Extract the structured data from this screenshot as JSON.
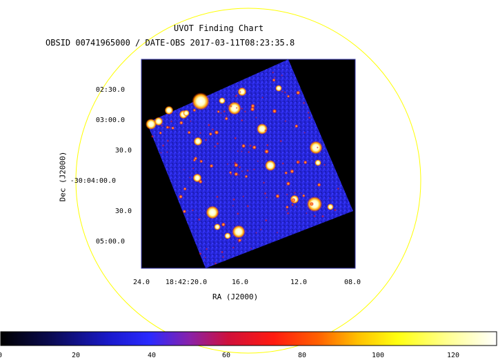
{
  "chart": {
    "title": "UVOT Finding Chart",
    "subtitle": "OBSID 00741965000 / DATE-OBS 2017-03-11T08:23:35.8",
    "xlabel": "RA (J2000)",
    "ylabel": "Dec (J2000)",
    "x_ticks": [
      "24.0",
      "18:42:20.0",
      "16.0",
      "12.0",
      "08.0"
    ],
    "y_ticks": [
      "02:30.0",
      "03:00.0",
      "30.0",
      "-30:04:00.0",
      "30.0",
      "05:00.0"
    ],
    "colorbar_ticks": [
      "0",
      "20",
      "40",
      "60",
      "80",
      "100",
      "120"
    ],
    "colorbar_range": [
      0,
      130
    ],
    "colors": {
      "circle": "#ffff00",
      "frame": "#3333aa",
      "background": "#000000",
      "field": "#2a2ad6"
    }
  },
  "chart_data": {
    "type": "other",
    "title": "UVOT Finding Chart",
    "subtitle": "OBSID 00741965000 / DATE-OBS 2017-03-11T08:23:35.8",
    "xlabel": "RA (J2000)",
    "ylabel": "Dec (J2000)",
    "x_tick_labels": [
      "24.0",
      "18:42:20.0",
      "16.0",
      "12.0",
      "08.0"
    ],
    "y_tick_labels": [
      "02:30.0",
      "03:00.0",
      "30.0",
      "-30:04:00.0",
      "30.0",
      "05:00.0"
    ],
    "colorbar": {
      "range": [
        0,
        130
      ],
      "ticks": [
        0,
        20,
        40,
        60,
        80,
        100,
        120
      ],
      "colormap": "heat"
    }
  }
}
